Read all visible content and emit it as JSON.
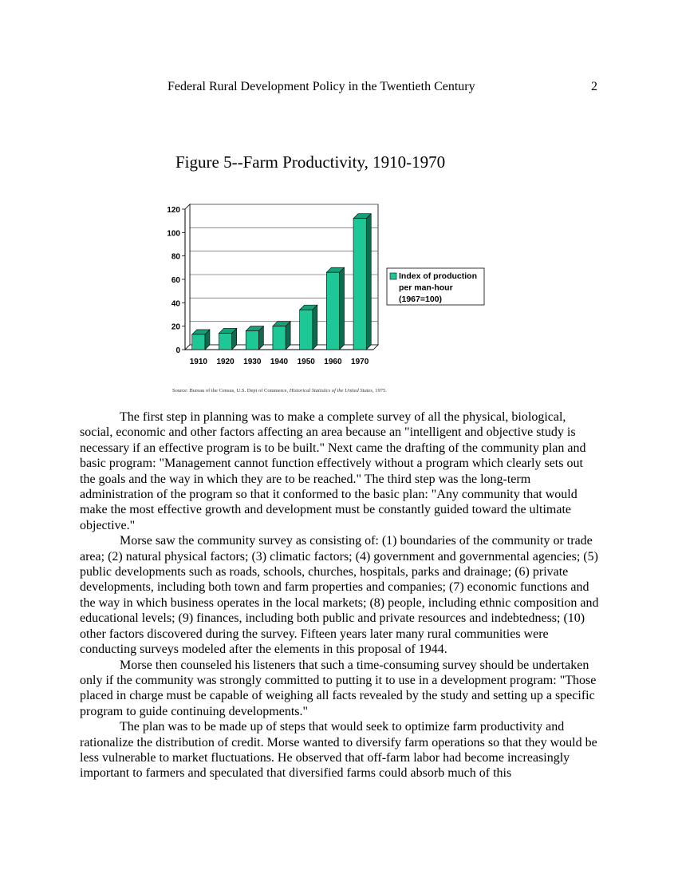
{
  "header": {
    "title": "Federal Rural Development Policy in the Twentieth Century",
    "page_number": "2"
  },
  "figure": {
    "title": "Figure 5--Farm Productivity, 1910-1970",
    "source_prefix": "Source: Bureau of the Census, U.S. Dept of Commerce, ",
    "source_title": "Historical Statistics of the United States",
    "source_suffix": ", 1975."
  },
  "chart_data": {
    "type": "bar",
    "categories": [
      "1910",
      "1920",
      "1930",
      "1940",
      "1950",
      "1960",
      "1970"
    ],
    "series": [
      {
        "name": "Index of production per man-hour (1967=100)",
        "values": [
          13,
          14,
          16,
          20,
          34,
          66,
          112
        ]
      }
    ],
    "legend_lines": [
      "Index of production",
      "per man-hour",
      "(1967=100)"
    ],
    "yticks": [
      0,
      20,
      40,
      60,
      80,
      100,
      120
    ],
    "ylim": [
      0,
      120
    ],
    "grid": true,
    "legend_position": "right",
    "bar_color": "#1dc896"
  },
  "paragraphs": [
    "The first step in planning was to make a complete survey of all the physical, biological, social, economic and other factors affecting an area because an \"intelligent and objective study is necessary if an effective program is to be built.\" Next came the drafting of the community plan and basic program: \"Management cannot function effectively without a program which clearly sets out the goals and the way in which they are to be reached.\" The third step was the long-term administration of the program so that it conformed to the basic plan: \"Any community that would make the most effective growth and development must be constantly guided toward the ultimate objective.\"",
    "Morse saw the community survey as consisting of: (1) boundaries of the community or trade area; (2) natural physical factors; (3) climatic factors; (4) government and governmental agencies; (5) public developments such as roads, schools, churches, hospitals, parks and drainage; (6) private developments, including both town and farm properties and companies; (7) economic functions and the way in which business operates in the local markets; (8) people, including ethnic composition and educational levels; (9) finances, including both public and private resources and indebtedness; (10) other factors discovered during the survey. Fifteen years later many rural communities were conducting surveys modeled after the elements in this proposal of 1944.",
    "Morse then counseled his listeners that such a time-consuming survey should be undertaken only if the community was strongly committed to putting it to use in a development program: \"Those placed in charge must be capable of weighing all facts revealed by the study and setting up a specific program to guide continuing developments.\"",
    "The plan was to be made up of steps that would seek to optimize farm productivity and rationalize the distribution of credit. Morse wanted to diversify farm operations so that they would be less vulnerable to market fluctuations. He observed that off-farm labor had become increasingly important to farmers and speculated that diversified farms could absorb much of this"
  ]
}
